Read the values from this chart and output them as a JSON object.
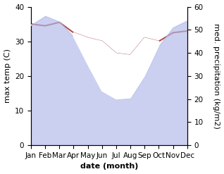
{
  "months": [
    "Jan",
    "Feb",
    "Mar",
    "Apr",
    "May",
    "Jun",
    "Jul",
    "Aug",
    "Sep",
    "Oct",
    "Nov",
    "Dec"
  ],
  "month_x": [
    0,
    1,
    2,
    3,
    4,
    5,
    6,
    7,
    8,
    9,
    10,
    11
  ],
  "temp_max": [
    35.0,
    34.5,
    35.5,
    32.5,
    31.0,
    30.0,
    26.5,
    26.0,
    31.0,
    30.0,
    32.5,
    33.0
  ],
  "precip": [
    52.0,
    56.0,
    53.5,
    47.0,
    35.0,
    23.5,
    20.0,
    20.5,
    30.0,
    43.0,
    51.0,
    54.0
  ],
  "temp_color": "#b05050",
  "precip_fill_color": "#b0b8e8",
  "precip_fill_alpha": 0.65,
  "temp_ylim": [
    0,
    40
  ],
  "precip_ylim": [
    0,
    60
  ],
  "ylabel_left": "max temp (C)",
  "ylabel_right": "med. precipitation (kg/m2)",
  "xlabel": "date (month)",
  "bg_color": "#ffffff",
  "label_fontsize": 8,
  "tick_fontsize": 7.5
}
